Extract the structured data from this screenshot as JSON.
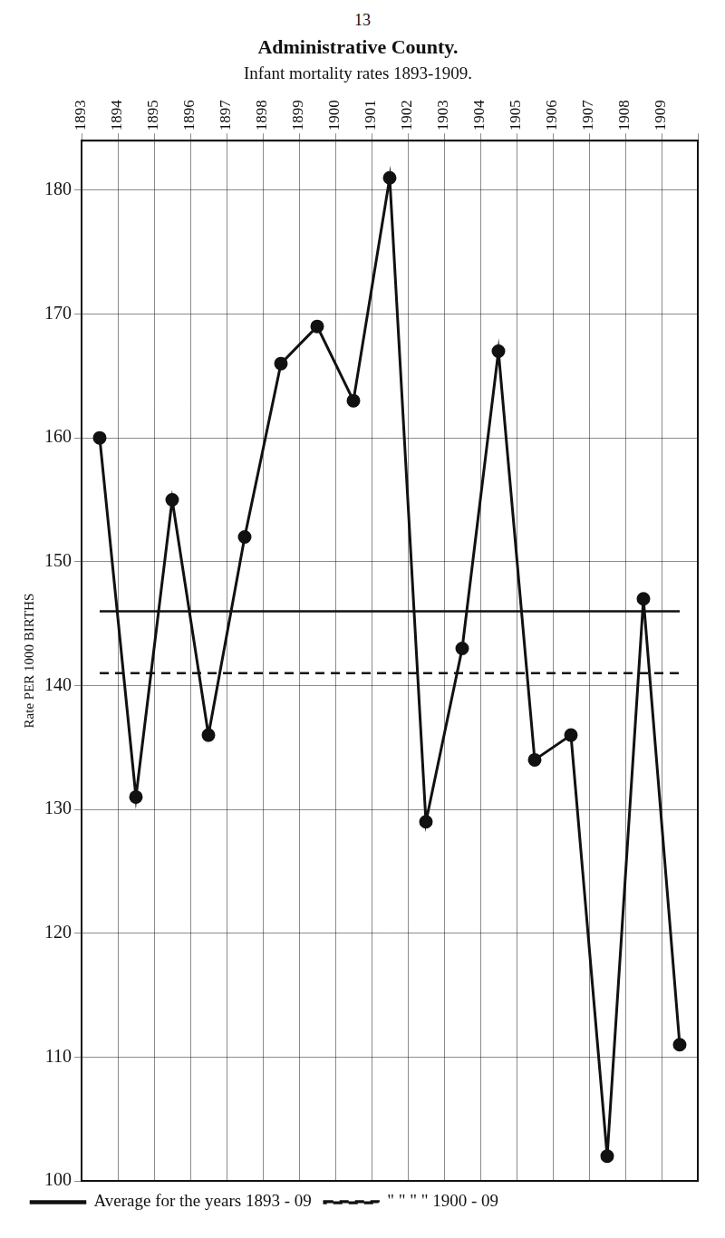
{
  "chart_data": {
    "type": "line",
    "annotations": [
      "13"
    ],
    "title": "Administrative County.",
    "subtitle": "Infant mortality rates 1893-1909.",
    "y_label": "Rate PER 1000 BIRTHS",
    "categories": [
      "1893",
      "1894",
      "1895",
      "1896",
      "1897",
      "1898",
      "1899",
      "1900",
      "1901",
      "1902",
      "1903",
      "1904",
      "1905",
      "1906",
      "1907",
      "1908",
      "1909"
    ],
    "series": [
      {
        "color": "#111111",
        "marker": "circle",
        "line_style": "solid",
        "values": [
          160,
          131,
          155,
          136,
          152,
          166,
          169,
          163,
          181,
          129,
          143,
          167,
          134,
          136,
          102,
          147,
          111
        ]
      },
      {
        "name": "Average for the years 1893 - 09",
        "color": "#111111",
        "marker": "none",
        "line_style": "solid",
        "values": [
          146,
          146,
          146,
          146,
          146,
          146,
          146,
          146,
          146,
          146,
          146,
          146,
          146,
          146,
          146,
          146,
          146
        ]
      },
      {
        "name": "\" \" \" \" 1900 - 09",
        "color": "#111111",
        "marker": "none",
        "line_style": "dashed",
        "values": [
          141,
          141,
          141,
          141,
          141,
          141,
          141,
          141,
          141,
          141,
          141,
          141,
          141,
          141,
          141,
          141,
          141
        ]
      }
    ],
    "ylim": [
      100,
      184
    ],
    "yticks": [
      100,
      110,
      120,
      130,
      140,
      150,
      160,
      170,
      180
    ],
    "grid": true,
    "legend": "bottom"
  }
}
